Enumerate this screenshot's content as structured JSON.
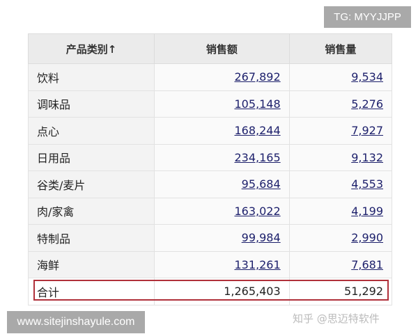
{
  "watermark_tg": "TG: MYYJJPP",
  "watermark_site": "www.sitejinshayule.com",
  "watermark_zhihu": "知乎 @思迈特软件",
  "table": {
    "headers": [
      "产品类别↑",
      "销售额",
      "销售量"
    ],
    "rows": [
      [
        "饮料",
        "267,892",
        "9,534"
      ],
      [
        "调味品",
        "105,148",
        "5,276"
      ],
      [
        "点心",
        "168,244",
        "7,927"
      ],
      [
        "日用品",
        "234,165",
        "9,132"
      ],
      [
        "谷类/麦片",
        "95,684",
        "4,553"
      ],
      [
        "肉/家禽",
        "163,022",
        "4,199"
      ],
      [
        "特制品",
        "99,984",
        "2,990"
      ],
      [
        "海鲜",
        "131,261",
        "7,681"
      ]
    ],
    "total": [
      "合计",
      "1,265,403",
      "51,292"
    ]
  },
  "colors": {
    "link": "#1c1f6b",
    "highlight_border": "#b0303a"
  }
}
